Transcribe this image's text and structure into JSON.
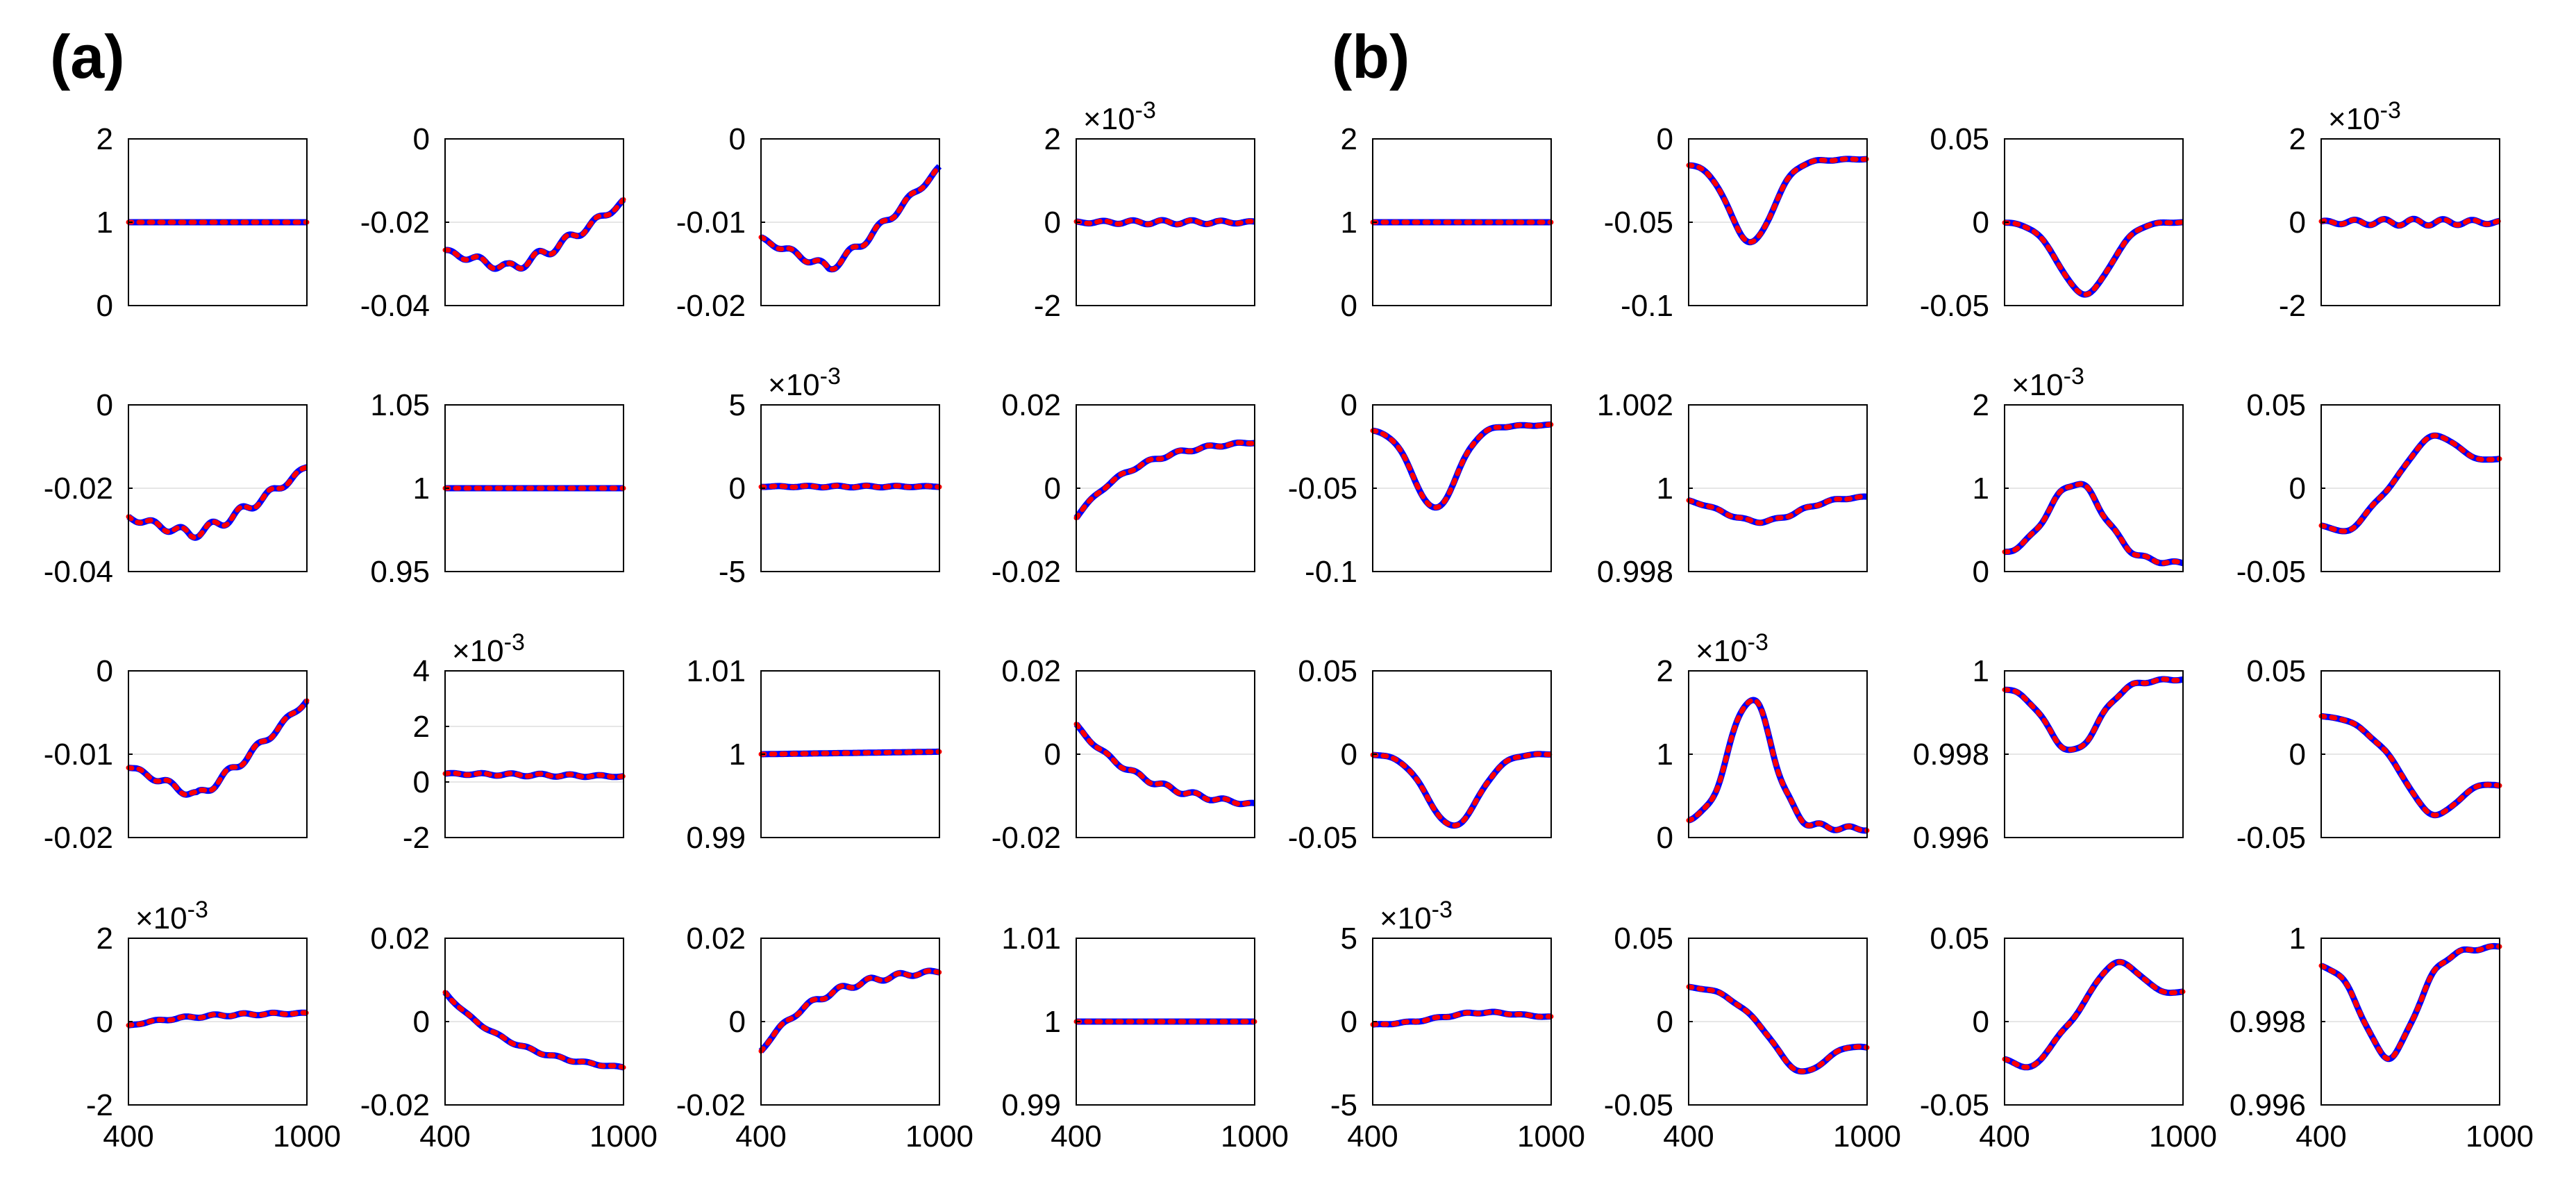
{
  "panels": [
    {
      "label": "(a)"
    },
    {
      "label": "(b)"
    }
  ],
  "colors": {
    "series_a": "#0000ff",
    "series_b": "#ff0000",
    "grid": "#e6e6e6",
    "axes": "#000000"
  },
  "chart_data": [
    {
      "panel": "(a)",
      "row": 1,
      "col": 1,
      "type": "line",
      "ylim": [
        0,
        2
      ],
      "yticks": [
        "0",
        "1",
        "2"
      ],
      "xlim": [
        400,
        1000
      ],
      "curve": "flat",
      "base": 1,
      "amp": 0,
      "grid": true
    },
    {
      "panel": "(a)",
      "row": 1,
      "col": 2,
      "type": "line",
      "ylim": [
        -0.04,
        0
      ],
      "yticks": [
        "-0.04",
        "-0.02",
        "0"
      ],
      "xlim": [
        400,
        1000
      ],
      "curve": "a_rise",
      "base": -0.027,
      "amp": 0.012,
      "wiggle": 0.0012,
      "grid": true
    },
    {
      "panel": "(a)",
      "row": 1,
      "col": 3,
      "type": "line",
      "ylim": [
        -0.02,
        0
      ],
      "yticks": [
        "-0.02",
        "-0.01",
        "0"
      ],
      "xlim": [
        400,
        1000
      ],
      "curve": "a_vee",
      "base": -0.012,
      "amp": -0.0035,
      "end": -0.0035,
      "wiggle": 0.0005,
      "grid": true
    },
    {
      "panel": "(a)",
      "row": 1,
      "col": 4,
      "type": "line",
      "ylim": [
        -2,
        2
      ],
      "yticks": [
        "-2",
        "0",
        "2"
      ],
      "xlim": [
        400,
        1000
      ],
      "exponent": "-3",
      "curve": "flat",
      "base": 0,
      "amp": 0,
      "wiggle": 0.05,
      "grid": true
    },
    {
      "panel": "(a)",
      "row": 2,
      "col": 1,
      "type": "line",
      "ylim": [
        -0.04,
        0
      ],
      "yticks": [
        "-0.04",
        "-0.02",
        "0"
      ],
      "xlim": [
        400,
        1000
      ],
      "curve": "a_rise",
      "base": -0.027,
      "amp": 0.012,
      "wiggle": 0.0012,
      "grid": true
    },
    {
      "panel": "(a)",
      "row": 2,
      "col": 2,
      "type": "line",
      "ylim": [
        0.95,
        1.05
      ],
      "yticks": [
        "0.95",
        "1",
        "1.05"
      ],
      "xlim": [
        400,
        1000
      ],
      "curve": "flat",
      "base": 1,
      "amp": 0,
      "grid": true
    },
    {
      "panel": "(a)",
      "row": 2,
      "col": 3,
      "type": "line",
      "ylim": [
        -5,
        5
      ],
      "yticks": [
        "-5",
        "0",
        "5"
      ],
      "xlim": [
        400,
        1000
      ],
      "exponent": "-3",
      "curve": "flat",
      "base": 0.1,
      "amp": 0,
      "wiggle": 0.05,
      "grid": true
    },
    {
      "panel": "(a)",
      "row": 2,
      "col": 4,
      "type": "line",
      "ylim": [
        -0.02,
        0.02
      ],
      "yticks": [
        "-0.02",
        "0",
        "0.02"
      ],
      "xlim": [
        400,
        1000
      ],
      "curve": "sat_rise",
      "base": -0.007,
      "amp": 0.018,
      "wiggle": 0.0004,
      "grid": true
    },
    {
      "panel": "(a)",
      "row": 3,
      "col": 1,
      "type": "line",
      "ylim": [
        -0.02,
        0
      ],
      "yticks": [
        "-0.02",
        "-0.01",
        "0"
      ],
      "xlim": [
        400,
        1000
      ],
      "curve": "a_vee",
      "base": -0.0115,
      "amp": -0.0035,
      "end": -0.0035,
      "wiggle": 0.0005,
      "grid": true
    },
    {
      "panel": "(a)",
      "row": 3,
      "col": 2,
      "type": "line",
      "ylim": [
        -2,
        4
      ],
      "yticks": [
        "-2",
        "0",
        "2",
        "4"
      ],
      "xlim": [
        400,
        1000
      ],
      "exponent": "-3",
      "curve": "flat",
      "base": 0.3,
      "amp": -0.1,
      "wiggle": 0.05,
      "grid": true
    },
    {
      "panel": "(a)",
      "row": 3,
      "col": 3,
      "type": "line",
      "ylim": [
        0.99,
        1.01
      ],
      "yticks": [
        "0.99",
        "1",
        "1.01"
      ],
      "xlim": [
        400,
        1000
      ],
      "curve": "flat",
      "base": 1,
      "amp": 0.0003,
      "grid": true
    },
    {
      "panel": "(a)",
      "row": 3,
      "col": 4,
      "type": "line",
      "ylim": [
        -0.02,
        0.02
      ],
      "yticks": [
        "-0.02",
        "0",
        "0.02"
      ],
      "xlim": [
        400,
        1000
      ],
      "curve": "sat_fall",
      "base": 0.007,
      "amp": -0.019,
      "wiggle": 0.0006,
      "grid": true
    },
    {
      "panel": "(a)",
      "row": 4,
      "col": 1,
      "type": "line",
      "ylim": [
        -2,
        2
      ],
      "yticks": [
        "-2",
        "0",
        "2"
      ],
      "xlim": [
        400,
        1000
      ],
      "exponent": "-3",
      "curve": "sat_rise",
      "base": -0.1,
      "amp": 0.3,
      "wiggle": 0.03,
      "grid": true
    },
    {
      "panel": "(a)",
      "row": 4,
      "col": 2,
      "type": "line",
      "ylim": [
        -0.02,
        0.02
      ],
      "yticks": [
        "-0.02",
        "0",
        "0.02"
      ],
      "xlim": [
        400,
        1000
      ],
      "curve": "sat_fall",
      "base": 0.007,
      "amp": -0.018,
      "wiggle": 0.0003,
      "grid": true
    },
    {
      "panel": "(a)",
      "row": 4,
      "col": 3,
      "type": "line",
      "ylim": [
        -0.02,
        0.02
      ],
      "yticks": [
        "-0.02",
        "0",
        "0.02"
      ],
      "xlim": [
        400,
        1000
      ],
      "curve": "sat_rise",
      "base": -0.007,
      "amp": 0.019,
      "wiggle": 0.0007,
      "grid": true
    },
    {
      "panel": "(a)",
      "row": 4,
      "col": 4,
      "type": "line",
      "ylim": [
        0.99,
        1.01
      ],
      "yticks": [
        "0.99",
        "1",
        "1.01"
      ],
      "xlim": [
        400,
        1000
      ],
      "curve": "flat",
      "base": 1,
      "amp": 0,
      "grid": true
    },
    {
      "panel": "(b)",
      "row": 1,
      "col": 1,
      "type": "line",
      "ylim": [
        0,
        2
      ],
      "yticks": [
        "0",
        "1",
        "2"
      ],
      "xlim": [
        400,
        1000
      ],
      "curve": "flat",
      "base": 1,
      "amp": 0,
      "grid": true
    },
    {
      "panel": "(b)",
      "row": 1,
      "col": 2,
      "type": "line",
      "ylim": [
        -0.1,
        0
      ],
      "yticks": [
        "-0.1",
        "-0.05",
        "0"
      ],
      "xlim": [
        400,
        1000
      ],
      "curve": "dip",
      "base": -0.015,
      "amp": -0.048,
      "end": -0.012,
      "center": 0.35,
      "width": 0.17,
      "wiggle": 0.0005,
      "grid": true
    },
    {
      "panel": "(b)",
      "row": 1,
      "col": 3,
      "type": "line",
      "ylim": [
        -0.05,
        0.05
      ],
      "yticks": [
        "-0.05",
        "0",
        "0.05"
      ],
      "xlim": [
        400,
        1000
      ],
      "curve": "dip",
      "base": 0,
      "amp": -0.043,
      "end": 0,
      "center": 0.45,
      "width": 0.2,
      "wiggle": 0.0004,
      "grid": true
    },
    {
      "panel": "(b)",
      "row": 1,
      "col": 4,
      "type": "line",
      "ylim": [
        -2,
        2
      ],
      "yticks": [
        "-2",
        "0",
        "2"
      ],
      "xlim": [
        400,
        1000
      ],
      "exponent": "-3",
      "curve": "flat",
      "base": 0,
      "amp": 0,
      "wiggle": 0.08,
      "grid": true
    },
    {
      "panel": "(b)",
      "row": 2,
      "col": 1,
      "type": "line",
      "ylim": [
        -0.1,
        0
      ],
      "yticks": [
        "-0.1",
        "-0.05",
        "0"
      ],
      "xlim": [
        400,
        1000
      ],
      "curve": "dip",
      "base": -0.015,
      "amp": -0.048,
      "end": -0.012,
      "center": 0.35,
      "width": 0.17,
      "wiggle": 0.0005,
      "grid": true
    },
    {
      "panel": "(b)",
      "row": 2,
      "col": 2,
      "type": "line",
      "ylim": [
        0.998,
        1.002
      ],
      "yticks": [
        "0.998",
        "1",
        "1.002"
      ],
      "xlim": [
        400,
        1000
      ],
      "curve": "dip",
      "base": 0.9998,
      "amp": -0.0006,
      "end": 0.9998,
      "center": 0.4,
      "width": 0.3,
      "wiggle": 3e-05,
      "grid": true
    },
    {
      "panel": "(b)",
      "row": 2,
      "col": 3,
      "type": "line",
      "ylim": [
        0,
        2
      ],
      "yticks": [
        "0",
        "1",
        "2"
      ],
      "xlim": [
        400,
        1000
      ],
      "exponent": "-3",
      "curve": "bump",
      "base": 0.2,
      "amp": 0.9,
      "end": 0.1,
      "center": 0.4,
      "width": 0.22,
      "wiggle": 0.03,
      "grid": true
    },
    {
      "panel": "(b)",
      "row": 2,
      "col": 4,
      "type": "line",
      "ylim": [
        -0.05,
        0.05
      ],
      "yticks": [
        "-0.05",
        "0",
        "0.05"
      ],
      "xlim": [
        400,
        1000
      ],
      "curve": "wave",
      "base": -0.02,
      "amp": 0.028,
      "end": 0.017,
      "wiggle": 0.0004,
      "grid": true
    },
    {
      "panel": "(b)",
      "row": 3,
      "col": 1,
      "type": "line",
      "ylim": [
        -0.05,
        0.05
      ],
      "yticks": [
        "-0.05",
        "0",
        "0.05"
      ],
      "xlim": [
        400,
        1000
      ],
      "curve": "dip",
      "base": 0,
      "amp": -0.043,
      "end": 0,
      "center": 0.45,
      "width": 0.2,
      "wiggle": 0.0004,
      "grid": true
    },
    {
      "panel": "(b)",
      "row": 3,
      "col": 2,
      "type": "line",
      "ylim": [
        0,
        2
      ],
      "yticks": [
        "0",
        "1",
        "2"
      ],
      "xlim": [
        400,
        1000
      ],
      "exponent": "-3",
      "curve": "bump",
      "base": 0.2,
      "amp": 1.5,
      "end": 0.1,
      "center": 0.35,
      "width": 0.17,
      "wiggle": 0.04,
      "grid": true
    },
    {
      "panel": "(b)",
      "row": 3,
      "col": 3,
      "type": "line",
      "ylim": [
        0.996,
        1
      ],
      "yticks": [
        "0.996",
        "0.998",
        "1"
      ],
      "xlim": [
        400,
        1000
      ],
      "curve": "dip",
      "base": 0.9996,
      "amp": -0.0016,
      "end": 0.9998,
      "center": 0.38,
      "width": 0.2,
      "wiggle": 4e-05,
      "grid": true
    },
    {
      "panel": "(b)",
      "row": 3,
      "col": 4,
      "type": "line",
      "ylim": [
        -0.05,
        0.05
      ],
      "yticks": [
        "-0.05",
        "0",
        "0.05"
      ],
      "xlim": [
        400,
        1000
      ],
      "curve": "wave_inv",
      "base": 0.022,
      "amp": -0.033,
      "end": -0.018,
      "wiggle": 0.0004,
      "grid": true
    },
    {
      "panel": "(b)",
      "row": 4,
      "col": 1,
      "type": "line",
      "ylim": [
        -5,
        5
      ],
      "yticks": [
        "-5",
        "0",
        "5"
      ],
      "xlim": [
        400,
        1000
      ],
      "exponent": "-3",
      "curve": "bump",
      "base": -0.2,
      "amp": 0.5,
      "end": 0.2,
      "center": 0.6,
      "width": 0.3,
      "wiggle": 0.05,
      "grid": true
    },
    {
      "panel": "(b)",
      "row": 4,
      "col": 2,
      "type": "line",
      "ylim": [
        -0.05,
        0.05
      ],
      "yticks": [
        "-0.05",
        "0",
        "0.05"
      ],
      "xlim": [
        400,
        1000
      ],
      "curve": "wave_inv",
      "base": 0.02,
      "amp": -0.028,
      "end": -0.015,
      "wiggle": 0.0004,
      "grid": true
    },
    {
      "panel": "(b)",
      "row": 4,
      "col": 3,
      "type": "line",
      "ylim": [
        -0.05,
        0.05
      ],
      "yticks": [
        "-0.05",
        "0",
        "0.05"
      ],
      "xlim": [
        400,
        1000
      ],
      "curve": "wave",
      "base": -0.02,
      "amp": 0.032,
      "end": 0.017,
      "wiggle": 0.0004,
      "grid": true
    },
    {
      "panel": "(b)",
      "row": 4,
      "col": 4,
      "type": "line",
      "ylim": [
        0.996,
        1
      ],
      "yticks": [
        "0.996",
        "0.998",
        "1"
      ],
      "xlim": [
        400,
        1000
      ],
      "curve": "dip",
      "base": 0.9994,
      "amp": -0.0024,
      "end": 0.9998,
      "center": 0.38,
      "width": 0.2,
      "wiggle": 5e-05,
      "grid": true
    }
  ],
  "xticks": [
    "400",
    "1000"
  ],
  "exponent_prefix": "×10"
}
